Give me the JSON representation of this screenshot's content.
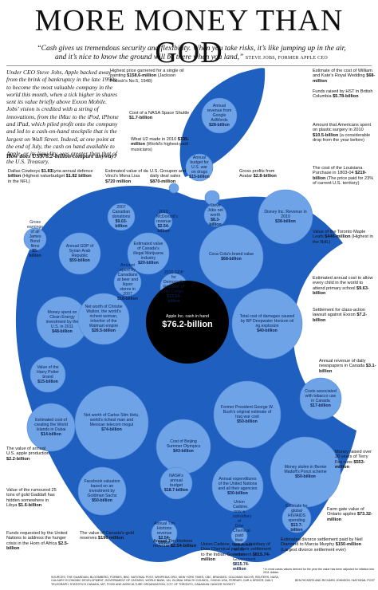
{
  "title": "MORE MONEY THAN GOD",
  "quote": {
    "text": "“Cash gives us tremendous security and flexibility. When you take risks, it’s like jumping up in the air, and it’s nice to know the ground will be there when you land,”",
    "attribution": "STEVE JOBS, FORMER APPLE CEO"
  },
  "intro": "Under CEO Steve Jobs, Apple backed away from the brink of bankruptcy in the late 1990s to become the most valuable company in the world this month, when a tick higher in shares sent its value briefly above Exxon Mobile. Jobs’ vision is credited with a string of innovations, from the iMac to the iPod, iPhone and iPad, which piled profit onto the company and led to a cash-on-hand stockpile that is the largest on Wall Street. Indeed, at one point at the end of July, the cash on hand available to Apple, or its liquidity, was greater than that of the U.S. Treasury.",
  "question": "How does US$76.2-billion compare anyway?",
  "footnote": "* In most cases values derived for the year the value has been adjusted for inflation into 2011 dollars",
  "sources": "SOURCES: THE GUARDIAN, BLOOMBERG, FORBES, BBC, NATIONAL POST, WIKIPEDIA.ORG, NEW YORK TIMES, CBC, BRANDED, GOLDMAN SACHS, REUTERS, NASA, CALGARY ECONOMIC DEVELOPMENT, GOVERNMENT OF ONTARIO, WORLD BANK, UN, GLOBAL HEALTH COUNCIL, GIVING USA, FERRARI, CAR & DRIVER, DAILY TELEGRAPH, STATISTICS CANADA, MIT, FOOD AND AGRICULTURE ORGANIZATION, CITY OF TORONTO, CANADIAN CANCER SOCIETY",
  "byline": "BEN RICKERS AND RICHARD JOHNSON / NATIONAL POST",
  "colors": {
    "apple": "#1f5fbf",
    "bubble": "#6ea3e8",
    "bubble_dark": "#4d88d9",
    "center": "#000000"
  },
  "chart_data": {
    "type": "bubble",
    "unit": "US$ billion",
    "center": {
      "label": "Apple Inc. cash in hand",
      "value_text": "$76.2-billion",
      "value": 76.2
    },
    "items": [
      {
        "label": "Highest price garnered for a single oil painting",
        "note": "(Jackson Pollock's No.5, 1948)",
        "value_text": "$158.6-million",
        "value": 0.1586
      },
      {
        "label": "Cost of a NASA Space Shuttle",
        "value_text": "$1.7-billion",
        "value": 1.7
      },
      {
        "label": "What U2 made in 2010",
        "note": "(World's highest-paid musicians)",
        "value_text": "$195-million",
        "value": 0.195
      },
      {
        "label": "Annual revenue from Google AdWords",
        "value_text": "$28-billion",
        "value": 28
      },
      {
        "label": "Annual budget for U.S. war on drugs",
        "value_text": "$15-billion",
        "value": 15
      },
      {
        "label": "Estimate of the cost of William and Kate's Royal Wedding",
        "value_text": "$68-million",
        "value": 0.068
      },
      {
        "label": "Funds raised by HST in British Columbia",
        "value_text": "$5.78-billion",
        "value": 5.78
      },
      {
        "label": "Amount that Americans spent on plastic surgery in 2010",
        "value_text": "$10.5-billion",
        "note": "(a considerable drop from the year before)",
        "value": 10.5
      },
      {
        "label": "Dallas Cowboys",
        "value_text": "$1.81 billion",
        "note": "(Highest value in the NFL)",
        "value": 1.81
      },
      {
        "label": "Syria annual defence budget",
        "value_text": "$1.82 billion",
        "value": 1.82
      },
      {
        "label": "Estimated value of da Vinci's Mona Lisa",
        "value_text": "$720 million",
        "value": 0.72
      },
      {
        "label": "U.S. Groupon and daily deal sales",
        "value_text": "$870-million",
        "value": 0.87
      },
      {
        "label": "Cost of Toronto G20 security",
        "value_text": "$800 million",
        "value": 0.8
      },
      {
        "label": "Gross profits from Avatar",
        "value_text": "$2.8-billion",
        "value": 2.8
      },
      {
        "label": "The cost of the Louisiana Purchase in 1803-04",
        "value_text": "$219-billion",
        "note": "(The price paid for 23% of current U.S. territory)",
        "value": 219
      },
      {
        "label": "2007 Canadian donations",
        "value_text": "$9.03-billion",
        "value": 9.03
      },
      {
        "label": "2010 McDonald's revenue",
        "value_text": "$2.54-billion",
        "value": 2.54
      },
      {
        "label": "Steve Jobs net worth",
        "value_text": "$8.3-billion",
        "value": 8.3
      },
      {
        "label": "Disney Inc. Revenue in 2010",
        "value_text": "$38-billion",
        "value": 38
      },
      {
        "label": "Value of the Toronto Maple Leafs",
        "value_text": "$446-million",
        "note": "(Highest in the NHL)",
        "value": 0.446
      },
      {
        "label": "Gross earnings of all James Bond films",
        "value_text": "$5-billion",
        "value": 5
      },
      {
        "label": "Annual GDP of Syrian Arab Republic",
        "value_text": "$59-billion",
        "value": 59
      },
      {
        "label": "Estimated value of Canada's illegal Marijuana industry",
        "value_text": "$20-billion",
        "value": 20
      },
      {
        "label": "Coca Cola's brand value",
        "value_text": "$68-billion",
        "value": 68
      },
      {
        "label": "Estimated annual cost to allow every child in the world to attend primary school",
        "value_text": "$9.63-billion",
        "value": 9.63
      },
      {
        "label": "Amount spent by Canadians at beer and liquor stores in 2007",
        "value_text": "$18-billion",
        "value": 18
      },
      {
        "label": "2010 GDP for Democratic Republic of the Congo",
        "value_text": "$13.14-billion",
        "value": 13.14
      },
      {
        "label": "Money spent on Clean Energy investment by the U.S. in 2011",
        "value_text": "$48-billion",
        "value": 48
      },
      {
        "label": "Net worth of Christie Walton, the world's richest woman, inheritor of the Walmart empire",
        "value_text": "$26.5-billion",
        "value": 26.5
      },
      {
        "label": "Total cost of damages caused by BP Deepwater Horizon oil rig explosion",
        "value_text": "$40-billion",
        "value": 40
      },
      {
        "label": "Settlement for class-action lawsuit against Exxon",
        "value_text": "$7.2-billion",
        "value": 7.2
      },
      {
        "label": "Value of the Harry Potter brand",
        "value_text": "$15-billion",
        "value": 15
      },
      {
        "label": "Annual revenue of daily newspapers in Canada",
        "value_text": "$3.1-billion",
        "value": 3.1
      },
      {
        "label": "Estimated cost of creating the World Islands in Dubai",
        "value_text": "$14-billion",
        "value": 14
      },
      {
        "label": "Net worth of Carlos Slim Helu, world's richest man and Mexican telecom mogul",
        "value_text": "$74-billion",
        "value": 74
      },
      {
        "label": "Former President George W. Bush's original estimate of Iraq war cost",
        "value_text": "$50-billion",
        "note": "(off by a few trillion)",
        "value": 50
      },
      {
        "label": "Costs associated with tobacco use in Canada",
        "value_text": "$17-billion",
        "value": 17
      },
      {
        "label": "Cost of Beijing Summer Olympics",
        "value_text": "$43-billion",
        "note": "(the most expensive Olympics ever)",
        "value": 43
      },
      {
        "label": "The value of annual U.S. apple production",
        "value_text": "$2.2-billion",
        "value": 2.2
      },
      {
        "label": "Value of the rumoured 25 tons of gold Gaddafi has hidden somewhere in Libya",
        "value_text": "$1.6-billion",
        "value": 1.6
      },
      {
        "label": "Money stolen in Bernie Madoff's Ponzi scheme",
        "value_text": "$50-billion",
        "value": 50
      },
      {
        "label": "Money raised over 30 years of Terry Fox runs",
        "value_text": "$553-million",
        "value": 0.553
      },
      {
        "label": "Facebook valuation based on an investment by Goldman Sachs",
        "value_text": "$50-billion",
        "value": 50
      },
      {
        "label": "NASA's annual budget",
        "value_text": "$18.7-billion",
        "value": 18.7
      },
      {
        "label": "Annual expenditures of the United Nations and all their agencies",
        "value_text": "$30-billion",
        "value": 30
      },
      {
        "label": "Estimate for global HIV/AIDS spending",
        "value_text": "$13.7-billion",
        "value": 13.7
      },
      {
        "label": "Farm gate value of Ontario apples",
        "value_text": "$73.32-million",
        "value": 0.07332
      },
      {
        "label": "Funds requested by the United Nations to address the hunger crisis in the Horn of Africa",
        "value_text": "$2.5-billion",
        "value": 2.5
      },
      {
        "label": "The value of Canada's gold reserves",
        "value_text": "$196 million",
        "value": 0.196
      },
      {
        "label": "Annual Tim Hortons revenue",
        "value_text": "$2.54-billion",
        "value": 2.54
      },
      {
        "label": "Union Carbine, now a subsidiary of Dow Chemical paid their settlement to the Indian Government",
        "value_text": "$815.74-million",
        "value": 0.81574
      },
      {
        "label": "Estimated divorce settlement paid by Neil Diamond to Marcia Murphy",
        "value_text": "$150-million",
        "note": "(Largest divorce settlement ever)",
        "value": 0.15
      }
    ]
  }
}
